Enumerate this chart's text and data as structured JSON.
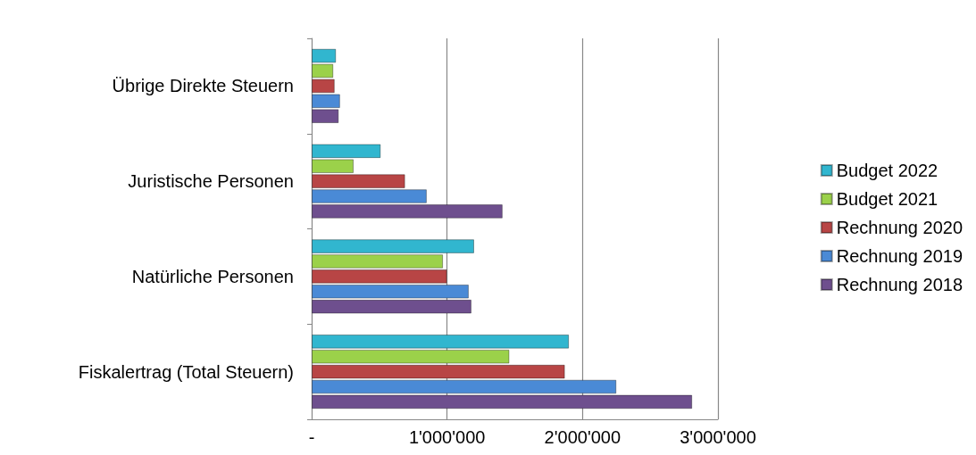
{
  "chart_data": {
    "type": "bar",
    "orientation": "horizontal",
    "categories": [
      "Übrige Direkte Steuern",
      "Juristische Personen",
      "Natürliche Personen",
      "Fiskalertrag (Total Steuern)"
    ],
    "series": [
      {
        "name": "Budget 2022",
        "color": "#31b6cf",
        "values": [
          180000,
          510000,
          1200000,
          1900000
        ]
      },
      {
        "name": "Budget 2021",
        "color": "#9bd14a",
        "values": [
          160000,
          310000,
          970000,
          1460000
        ]
      },
      {
        "name": "Rechnung 2020",
        "color": "#b84545",
        "values": [
          170000,
          690000,
          1000000,
          1870000
        ]
      },
      {
        "name": "Rechnung 2019",
        "color": "#4a8ad6",
        "values": [
          210000,
          850000,
          1160000,
          2250000
        ]
      },
      {
        "name": "Rechnung 2018",
        "color": "#6e4f8e",
        "values": [
          200000,
          1410000,
          1180000,
          2810000
        ]
      }
    ],
    "xlim": [
      0,
      3000000
    ],
    "xticks": [
      {
        "value": 0,
        "label": "-"
      },
      {
        "value": 1000000,
        "label": "1'000'000"
      },
      {
        "value": 2000000,
        "label": "2'000'000"
      },
      {
        "value": 3000000,
        "label": "3'000'000"
      }
    ],
    "grid": "x",
    "legend": "right"
  }
}
